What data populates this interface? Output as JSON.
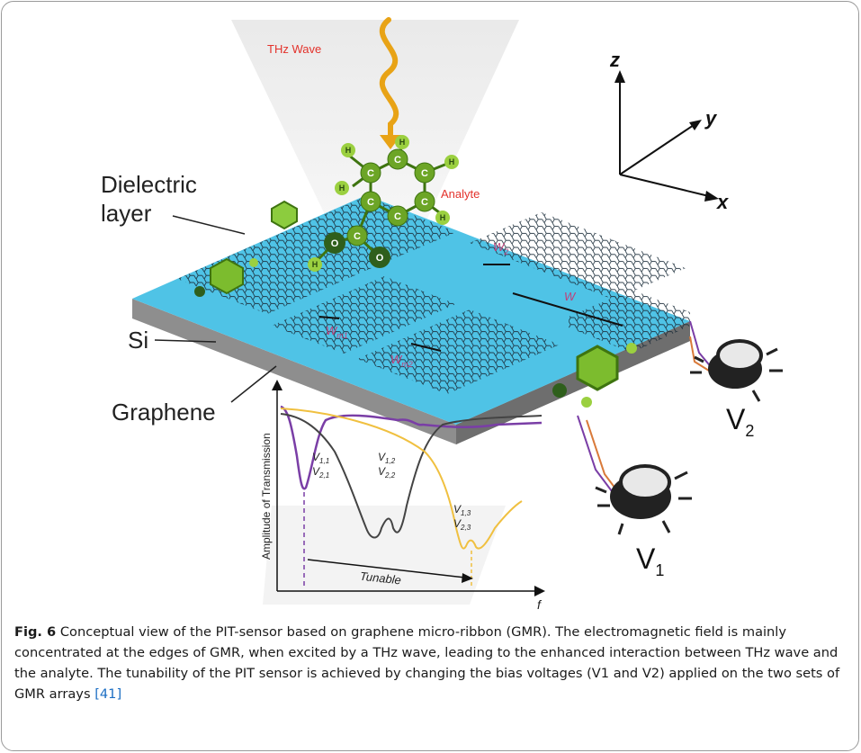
{
  "figure": {
    "labels": {
      "thz_wave": "THz Wave",
      "analyte": "Analyte",
      "dielectric_line1": "Dielectric",
      "dielectric_line2": "layer",
      "si": "Si",
      "graphene": "Graphene",
      "axis_z": "z",
      "axis_y": "y",
      "axis_x": "x",
      "w2": "W",
      "w2_sub": "2",
      "w": "W",
      "wm1": "W",
      "wm1_sub": "m1",
      "wm2": "W",
      "wm2_sub": "m2",
      "v1": "V",
      "v1_sub": "1",
      "v2": "V",
      "v2_sub": "2",
      "atom_h": "H",
      "atom_c": "C",
      "atom_o": "O"
    },
    "inset": {
      "ylabel": "Amplitude of Transmission",
      "xlabel": "f",
      "tunable": "Tunable",
      "v11": "V",
      "v11_sub": "1,1",
      "v21": "V",
      "v21_sub": "2,1",
      "v12": "V",
      "v12_sub": "1,2",
      "v22": "V",
      "v22_sub": "2,2",
      "v13": "V",
      "v13_sub": "1,3",
      "v23": "V",
      "v23_sub": "2,3"
    },
    "colors": {
      "substrate_top": "#4fc3e6",
      "substrate_side": "#8c8c8c",
      "red_label": "#e3322b",
      "pink_label": "#c0407a",
      "wave": "#e8a316",
      "molecule": "#6ca526",
      "purple_curve": "#7a3ea6",
      "gold_curve": "#f0c040",
      "gray_curve": "#444444"
    }
  },
  "caption": {
    "label": "Fig. 6",
    "text": " Conceptual view of the PIT-sensor based on graphene micro-ribbon (GMR). The electromagnetic field is mainly concentrated at the edges of GMR, when excited by a THz wave, leading to the enhanced interaction between THz wave and the analyte. The tunability of the PIT sensor is achieved by changing the bias voltages (V1 and V2) applied on the two sets of GMR arrays ",
    "ref": "[41]"
  }
}
